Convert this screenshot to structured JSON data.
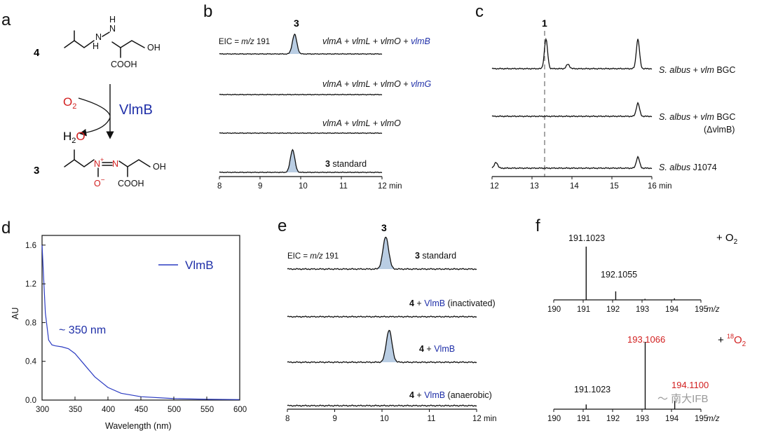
{
  "panels": {
    "a": {
      "letter": "a",
      "top_compound": "4",
      "bottom_compound": "3",
      "nh1": "H",
      "nh2": "N",
      "nh3": "N",
      "nh4": "H",
      "oh": "OH",
      "cooh": "COOH",
      "o2_main": "O",
      "o2_sub": "2",
      "enzyme": "VlmB",
      "h2o_h": "H",
      "h2o_sub": "2",
      "h2o_o": "O",
      "n_plus": "N",
      "plus": "+",
      "n_eq": "N",
      "o_minus": "O",
      "minus": "−",
      "oh2": "OH",
      "cooh2": "COOH"
    },
    "b": {
      "letter": "b",
      "peak_label": "3",
      "eic_prefix": "EIC = ",
      "eic_mz": "m/z",
      "eic_value": " 191",
      "traces": [
        {
          "parts": [
            "vlmA",
            " + ",
            "vlmL",
            " + ",
            "vlmO",
            " + ",
            "vlmB"
          ]
        },
        {
          "parts": [
            "vlmA",
            " + ",
            "vlmL",
            " + ",
            "vlmO",
            " + ",
            "vlmG"
          ]
        },
        {
          "parts": [
            "vlmA",
            " + ",
            "vlmL",
            " + ",
            "vlmO"
          ]
        },
        {
          "std_num": "3",
          "std_text": " standard"
        }
      ],
      "x_ticks": [
        "8",
        "9",
        "10",
        "11",
        "12 min"
      ]
    },
    "c": {
      "letter": "c",
      "peak_label": "1",
      "traces": [
        {
          "sp": "S. albus",
          "mid": " + ",
          "vlm": "vlm",
          "bgc": " BGC"
        },
        {
          "sp": "S. albus",
          "mid": " + ",
          "vlm": "vlm",
          "bgc": " BGC",
          "sub": "(ΔvlmB)"
        },
        {
          "sp": "S. albus",
          "strain": "  J1074"
        }
      ],
      "x_ticks": [
        "12",
        "13",
        "14",
        "15",
        "16 min"
      ]
    },
    "d": {
      "letter": "d",
      "legend": "VlmB",
      "annotation": "~ 350 nm",
      "xlabel": "Wavelength (nm)",
      "ylabel": "AU",
      "x_ticks": [
        "300",
        "350",
        "400",
        "450",
        "500",
        "550",
        "600"
      ],
      "y_ticks": [
        "0.0",
        "0.4",
        "0.8",
        "1.2",
        "1.6"
      ]
    },
    "e": {
      "letter": "e",
      "peak_label": "3",
      "eic_prefix": "EIC = ",
      "eic_mz": "m/z",
      "eic_value": " 191",
      "traces": [
        {
          "num": "3",
          "text": " standard"
        },
        {
          "num": "4",
          "plus": " + ",
          "enz": "VlmB",
          "cond": " (inactivated)"
        },
        {
          "num": "4",
          "plus": " + ",
          "enz": "VlmB",
          "cond": ""
        },
        {
          "num": "4",
          "plus": " + ",
          "enz": "VlmB",
          "cond": " (anaerobic)"
        }
      ],
      "x_ticks": [
        "8",
        "9",
        "10",
        "11",
        "12 min"
      ]
    },
    "f": {
      "letter": "f",
      "top": {
        "label_plus": "+  O",
        "label_sub": "2",
        "peak1": "191.1023",
        "peak2": "192.1055"
      },
      "bottom": {
        "label_plus": "+ ",
        "label_sup": "18",
        "label_o": "O",
        "label_sub": "2",
        "peak1": "193.1066",
        "peak2": "194.1100",
        "peak3": "191.1023"
      },
      "x_ticks": [
        "190",
        "191",
        "192",
        "193",
        "194",
        "195"
      ],
      "x_unit": "m/z"
    }
  },
  "chart_data": [
    {
      "type": "line",
      "panel": "b",
      "xlabel": "min",
      "xlim": [
        8,
        12
      ],
      "series": [
        {
          "name": "vlmA + vlmL + vlmO + vlmB",
          "peaks": [
            {
              "rt": 9.85,
              "height": 1.0
            }
          ]
        },
        {
          "name": "vlmA + vlmL + vlmO + vlmG",
          "peaks": []
        },
        {
          "name": "vlmA + vlmL + vlmO",
          "peaks": []
        },
        {
          "name": "3 standard",
          "peaks": [
            {
              "rt": 9.8,
              "height": 1.15
            }
          ]
        }
      ]
    },
    {
      "type": "line",
      "panel": "c",
      "xlabel": "min",
      "xlim": [
        12,
        16
      ],
      "series": [
        {
          "name": "S. albus + vlm BGC",
          "peaks": [
            {
              "rt": 13.35,
              "height": 1.0
            },
            {
              "rt": 13.9,
              "height": 0.15
            },
            {
              "rt": 15.65,
              "height": 1.0
            }
          ]
        },
        {
          "name": "S. albus + vlm BGC (ΔvlmB)",
          "peaks": [
            {
              "rt": 15.65,
              "height": 0.45
            }
          ]
        },
        {
          "name": "S. albus J1074",
          "peaks": [
            {
              "rt": 12.1,
              "height": 0.2
            },
            {
              "rt": 15.65,
              "height": 0.38
            }
          ]
        }
      ]
    },
    {
      "type": "line",
      "panel": "d",
      "xlabel": "Wavelength (nm)",
      "ylabel": "AU",
      "xlim": [
        300,
        600
      ],
      "ylim": [
        0,
        1.7
      ],
      "series": [
        {
          "name": "VlmB",
          "x": [
            300,
            305,
            310,
            315,
            320,
            330,
            340,
            350,
            360,
            370,
            380,
            400,
            420,
            450,
            500,
            550,
            600
          ],
          "y": [
            1.6,
            0.9,
            0.62,
            0.57,
            0.56,
            0.55,
            0.53,
            0.48,
            0.4,
            0.32,
            0.24,
            0.13,
            0.07,
            0.035,
            0.015,
            0.008,
            0.005
          ]
        }
      ]
    },
    {
      "type": "line",
      "panel": "e",
      "xlabel": "min",
      "xlim": [
        8,
        12
      ],
      "series": [
        {
          "name": "3 standard",
          "peaks": [
            {
              "rt": 10.08,
              "height": 1.0
            }
          ]
        },
        {
          "name": "4 + VlmB (inactivated)",
          "peaks": []
        },
        {
          "name": "4 + VlmB",
          "peaks": [
            {
              "rt": 10.15,
              "height": 1.0
            }
          ]
        },
        {
          "name": "4 + VlmB (anaerobic)",
          "peaks": []
        }
      ]
    },
    {
      "type": "bar",
      "panel": "f",
      "xlabel": "m/z",
      "xlim": [
        190,
        195
      ],
      "series": [
        {
          "name": "+ O2",
          "x": [
            191.1023,
            192.1055,
            193.1,
            194.1
          ],
          "y": [
            1.0,
            0.16,
            0.02,
            0.03
          ]
        },
        {
          "name": "+ 18O2",
          "x": [
            191.1023,
            193.1066,
            194.11
          ],
          "y": [
            0.07,
            1.0,
            0.12
          ]
        }
      ]
    }
  ]
}
